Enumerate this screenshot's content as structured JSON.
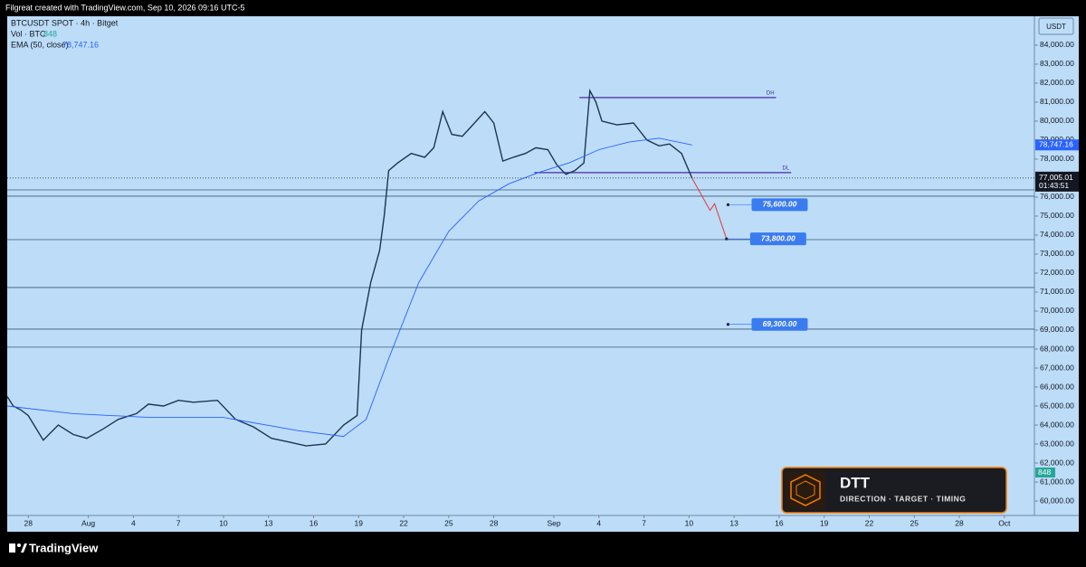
{
  "header": {
    "text": "Filgreat created with TradingView.com, Sep 10, 2026 09:16 UTC-5"
  },
  "chart_data": {
    "type": "line",
    "axis_unit": "USDT",
    "volume": {
      "name": "Vol · BTC",
      "label": "848"
    },
    "series": [
      {
        "name": "BTCUSDT SPOT · 4h · Bitget",
        "color": "#1d3550",
        "x": [
          -1.4,
          -1,
          -0.5,
          0,
          1,
          2,
          3,
          3.9,
          5,
          6,
          7.2,
          8,
          9,
          10,
          11,
          12.6,
          13.8,
          15,
          16.2,
          17.4,
          18.5,
          19.8,
          21,
          21.9,
          22.2,
          22.8,
          23.4,
          23.7,
          24,
          24.6,
          25.5,
          26.4,
          27,
          27.6,
          28.2,
          28.9,
          29.6,
          30.4,
          31,
          31.6,
          32.3,
          33.1,
          33.8,
          34.6,
          35.2,
          35.8,
          36.4,
          37,
          37.4,
          37.8,
          38.2,
          39.2,
          40.3,
          41.2,
          42,
          42.7,
          43.5,
          44.2
        ],
        "values": [
          65500,
          65000,
          64800,
          64500,
          63200,
          64000,
          63500,
          63300,
          63800,
          64300,
          64600,
          65100,
          65000,
          65300,
          65200,
          65300,
          64300,
          63900,
          63300,
          63100,
          62900,
          63000,
          64000,
          64500,
          69000,
          71500,
          73200,
          75000,
          77400,
          77800,
          78300,
          78100,
          78600,
          80500,
          79300,
          79200,
          79800,
          80500,
          79900,
          77900,
          78100,
          78300,
          78600,
          78500,
          77700,
          77200,
          77400,
          77800,
          81600,
          81000,
          80000,
          79800,
          79900,
          79000,
          78700,
          78800,
          78300,
          77000
        ]
      },
      {
        "name": "EMA (50, close)",
        "color": "#2962ff",
        "x": [
          -1.4,
          3,
          8,
          13,
          18,
          21,
          22.5,
          24,
          26,
          28,
          30,
          32,
          34,
          36,
          38,
          40,
          42,
          44.2
        ],
        "values": [
          65000,
          64600,
          64400,
          64400,
          63700,
          63400,
          64300,
          67500,
          71500,
          74200,
          75800,
          76700,
          77300,
          77800,
          78500,
          78900,
          79100,
          78747.16
        ]
      }
    ],
    "ema_last": {
      "value": 78747.16,
      "label": "78,747.16"
    },
    "last_price": {
      "value": 77005.01,
      "label": "77,005.01",
      "countdown": "01:43:51"
    },
    "levels": [
      {
        "label": "DH",
        "value": 81240,
        "x": [
          36.7,
          49.8
        ]
      },
      {
        "label": "DL",
        "value": 77290,
        "x": [
          33.7,
          50.8
        ]
      }
    ],
    "zone_lines": [
      76380,
      76050,
      73760,
      71240,
      69050,
      68100
    ],
    "projection": {
      "color": "#e53935",
      "x": [
        44.2,
        45.4,
        45.7,
        46.5
      ],
      "values": [
        77000,
        75300,
        75650,
        73800
      ]
    },
    "targets": [
      {
        "value": 75600,
        "label": "75,600.00",
        "x": 46.6
      },
      {
        "value": 73800,
        "label": "73,800.00",
        "x": 46.5
      },
      {
        "value": 69300,
        "label": "69,300.00",
        "x": 46.6
      }
    ],
    "xlim": [
      -1.4,
      67
    ],
    "xticks": [
      {
        "value": 0,
        "label": "28"
      },
      {
        "value": 4,
        "label": "Aug"
      },
      {
        "value": 7,
        "label": "4"
      },
      {
        "value": 10,
        "label": "7"
      },
      {
        "value": 13,
        "label": "10"
      },
      {
        "value": 16,
        "label": "13"
      },
      {
        "value": 19,
        "label": "16"
      },
      {
        "value": 22,
        "label": "19"
      },
      {
        "value": 25,
        "label": "22"
      },
      {
        "value": 28,
        "label": "25"
      },
      {
        "value": 31,
        "label": "28"
      },
      {
        "value": 35,
        "label": "Sep"
      },
      {
        "value": 38,
        "label": "4"
      },
      {
        "value": 41,
        "label": "7"
      },
      {
        "value": 44,
        "label": "10"
      },
      {
        "value": 47,
        "label": "13"
      },
      {
        "value": 50,
        "label": "16"
      },
      {
        "value": 53,
        "label": "19"
      },
      {
        "value": 56,
        "label": "22"
      },
      {
        "value": 59,
        "label": "25"
      },
      {
        "value": 62,
        "label": "28"
      },
      {
        "value": 65,
        "label": "Oct"
      }
    ],
    "ylim": [
      59240,
      85520
    ],
    "yticks": [
      {
        "value": 60000,
        "label": "60,000.00"
      },
      {
        "value": 61000,
        "label": "61,000.00"
      },
      {
        "value": 62000,
        "label": "62,000.00"
      },
      {
        "value": 63000,
        "label": "63,000.00"
      },
      {
        "value": 64000,
        "label": "64,000.00"
      },
      {
        "value": 65000,
        "label": "65,000.00"
      },
      {
        "value": 66000,
        "label": "66,000.00"
      },
      {
        "value": 67000,
        "label": "67,000.00"
      },
      {
        "value": 68000,
        "label": "68,000.00"
      },
      {
        "value": 69000,
        "label": "69,000.00"
      },
      {
        "value": 70000,
        "label": "70,000.00"
      },
      {
        "value": 71000,
        "label": "71,000.00"
      },
      {
        "value": 72000,
        "label": "72,000.00"
      },
      {
        "value": 73000,
        "label": "73,000.00"
      },
      {
        "value": 74000,
        "label": "74,000.00"
      },
      {
        "value": 75000,
        "label": "75,000.00"
      },
      {
        "value": 76000,
        "label": "76,000.00"
      },
      {
        "value": 78000,
        "label": "78,000.00"
      },
      {
        "value": 79000,
        "label": "79,000.00"
      },
      {
        "value": 80000,
        "label": "80,000.00"
      },
      {
        "value": 81000,
        "label": "81,000.00"
      },
      {
        "value": 82000,
        "label": "82,000.00"
      },
      {
        "value": 83000,
        "label": "83,000.00"
      },
      {
        "value": 84000,
        "label": "84,000.00"
      }
    ]
  },
  "badge": {
    "title": "DTT",
    "subtitle": "DIRECTION · TARGET · TIMING"
  },
  "footer": {
    "brand": "TradingView"
  }
}
